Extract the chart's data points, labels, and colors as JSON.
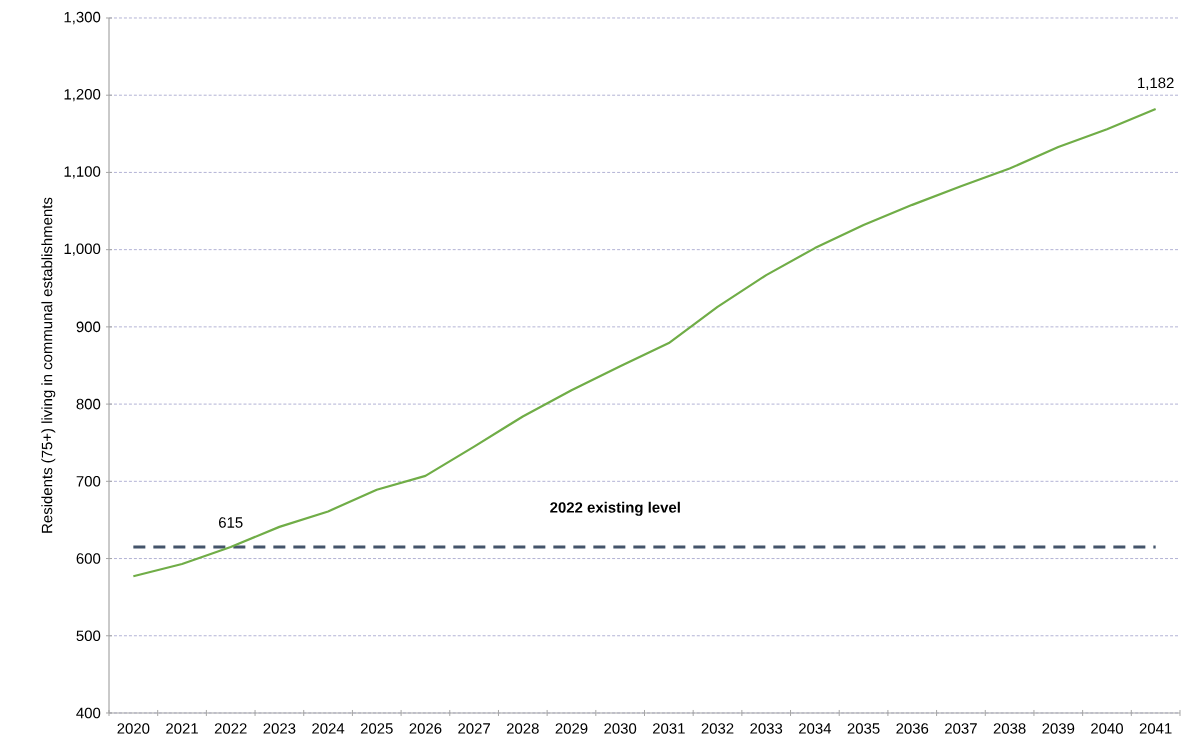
{
  "chart_data": {
    "type": "line",
    "ylabel": "Residents (75+) living in communal establishments",
    "categories": [
      "2020",
      "2021",
      "2022",
      "2023",
      "2024",
      "2025",
      "2026",
      "2027",
      "2028",
      "2029",
      "2030",
      "2031",
      "2032",
      "2033",
      "2034",
      "2035",
      "2036",
      "2037",
      "2038",
      "2039",
      "2040",
      "2041"
    ],
    "series": [
      {
        "color": "#70ad47",
        "values": [
          577,
          593,
          615,
          641,
          661,
          689,
          707,
          745,
          784,
          818,
          849,
          879,
          926,
          967,
          1002,
          1032,
          1058,
          1082,
          1105,
          1133,
          1156,
          1182
        ],
        "value_labels": [
          null,
          null,
          "615",
          null,
          null,
          null,
          null,
          null,
          null,
          null,
          null,
          null,
          null,
          null,
          null,
          null,
          null,
          null,
          null,
          null,
          null,
          "1,182"
        ]
      }
    ],
    "ylim": [
      400,
      1300
    ],
    "yticks": [
      400,
      500,
      600,
      700,
      800,
      900,
      {
        "value": 1000,
        "label": "1,000"
      },
      {
        "value": 1100,
        "label": "1,100"
      },
      {
        "value": 1200,
        "label": "1,200"
      },
      {
        "value": 1300,
        "label": "1,300"
      }
    ],
    "grid": "y",
    "ref_lines": [
      {
        "axis": "y",
        "value": 615,
        "label": "2022 existing level",
        "color": "#44546a",
        "line_style": "dashed"
      }
    ]
  }
}
